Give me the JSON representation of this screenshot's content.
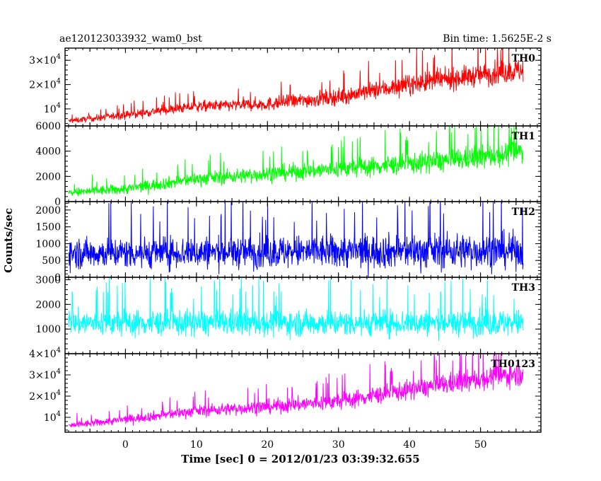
{
  "header": {
    "object_name": "ae120123033932_wam0_bst",
    "bin_time": "Bin time: 1.5625E-2 s"
  },
  "chart_data": {
    "type": "line",
    "xlabel": "Time [sec] 0 = 2012/01/23 03:39:32.655",
    "ylabel": "Counts/sec",
    "xlim": [
      -8.5,
      58.5
    ],
    "x_ticks": [
      0,
      10,
      20,
      30,
      40,
      50
    ],
    "x_tick_labels": [
      "0",
      "10",
      "20",
      "30",
      "40",
      "50"
    ],
    "x_range": [
      -8,
      56
    ],
    "shared_x": true,
    "grid": false,
    "panels": [
      {
        "name": "TH0",
        "color": "#ff0000",
        "ylim": [
          3000,
          35000
        ],
        "y_ticks": [
          10000,
          20000,
          30000
        ],
        "y_tick_labels": [
          {
            "m": "",
            "e": "10",
            "p": "4"
          },
          {
            "m": "2×",
            "e": "10",
            "p": "4"
          },
          {
            "m": "3×",
            "e": "10",
            "p": "4"
          }
        ],
        "baseline": [
          [
            -8,
            5000
          ],
          [
            0,
            7500
          ],
          [
            10,
            11000
          ],
          [
            20,
            12000
          ],
          [
            30,
            15000
          ],
          [
            40,
            20000
          ],
          [
            50,
            24000
          ],
          [
            56,
            26000
          ]
        ],
        "noise": [
          [
            -8,
            800
          ],
          [
            56,
            3500
          ]
        ]
      },
      {
        "name": "TH1",
        "color": "#00ff00",
        "ylim": [
          0,
          6000
        ],
        "y_ticks": [
          0,
          2000,
          4000,
          6000
        ],
        "y_tick_labels": [
          {
            "m": "0",
            "e": "",
            "p": ""
          },
          {
            "m": "2000",
            "e": "",
            "p": ""
          },
          {
            "m": "4000",
            "e": "",
            "p": ""
          },
          {
            "m": "6000",
            "e": "",
            "p": ""
          }
        ],
        "baseline": [
          [
            -8,
            700
          ],
          [
            0,
            1000
          ],
          [
            10,
            1800
          ],
          [
            20,
            2200
          ],
          [
            30,
            2600
          ],
          [
            40,
            3000
          ],
          [
            50,
            3500
          ],
          [
            56,
            4000
          ]
        ],
        "noise": [
          [
            -8,
            250
          ],
          [
            56,
            700
          ]
        ]
      },
      {
        "name": "TH2",
        "color": "#0000ff",
        "ylim": [
          0,
          2250
        ],
        "y_ticks": [
          0,
          500,
          1000,
          1500,
          2000
        ],
        "y_tick_labels": [
          {
            "m": "0",
            "e": "",
            "p": ""
          },
          {
            "m": "500",
            "e": "",
            "p": ""
          },
          {
            "m": "1000",
            "e": "",
            "p": ""
          },
          {
            "m": "1500",
            "e": "",
            "p": ""
          },
          {
            "m": "2000",
            "e": "",
            "p": ""
          }
        ],
        "baseline": [
          [
            -8,
            720
          ],
          [
            0,
            730
          ],
          [
            20,
            750
          ],
          [
            40,
            780
          ],
          [
            56,
            800
          ]
        ],
        "noise": [
          [
            -8,
            320
          ],
          [
            56,
            380
          ]
        ]
      },
      {
        "name": "TH3",
        "color": "#00ffff",
        "ylim": [
          0,
          3100
        ],
        "y_ticks": [
          1000,
          2000,
          3000
        ],
        "y_tick_labels": [
          {
            "m": "1000",
            "e": "",
            "p": ""
          },
          {
            "m": "2000",
            "e": "",
            "p": ""
          },
          {
            "m": "3000",
            "e": "",
            "p": ""
          }
        ],
        "baseline": [
          [
            -8,
            1250
          ],
          [
            20,
            1250
          ],
          [
            56,
            1250
          ]
        ],
        "noise": [
          [
            -8,
            380
          ],
          [
            56,
            380
          ]
        ]
      },
      {
        "name": "TH0123",
        "color": "#ff00ff",
        "ylim": [
          3000,
          40000
        ],
        "y_ticks": [
          10000,
          20000,
          30000,
          40000
        ],
        "y_tick_labels": [
          {
            "m": "",
            "e": "10",
            "p": "4"
          },
          {
            "m": "2×",
            "e": "10",
            "p": "4"
          },
          {
            "m": "3×",
            "e": "10",
            "p": "4"
          },
          {
            "m": "4×",
            "e": "10",
            "p": "4"
          }
        ],
        "baseline": [
          [
            -8,
            6000
          ],
          [
            0,
            9000
          ],
          [
            10,
            13000
          ],
          [
            20,
            15000
          ],
          [
            30,
            17500
          ],
          [
            40,
            23000
          ],
          [
            50,
            28000
          ],
          [
            56,
            31000
          ]
        ],
        "noise": [
          [
            -8,
            1100
          ],
          [
            56,
            4000
          ]
        ]
      }
    ]
  }
}
